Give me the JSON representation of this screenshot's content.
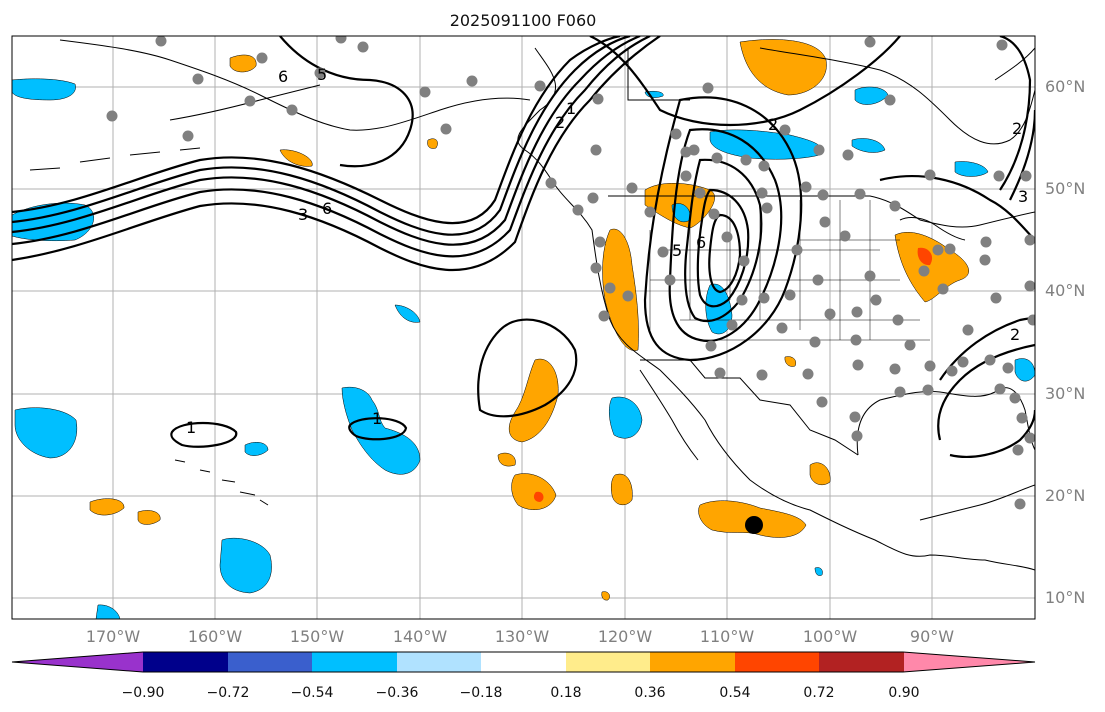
{
  "title": "2025091100 F060",
  "map": {
    "lat_labels": [
      "60°N",
      "50°N",
      "40°N",
      "30°N",
      "20°N",
      "10°N"
    ],
    "lon_labels": [
      "170°W",
      "160°W",
      "150°W",
      "140°W",
      "130°W",
      "120°W",
      "110°W",
      "100°W",
      "90°W"
    ],
    "contour_labels": [
      "6",
      "5",
      "2",
      "1",
      "2",
      "3",
      "6",
      "5",
      "6",
      "2",
      "1",
      "1",
      "3",
      "2"
    ],
    "colors": {
      "positive_orange": "#FFA500",
      "positive_red": "#FF4500",
      "negative_cyan": "#00BFFF",
      "station_dot": "#808080",
      "contour": "#000000"
    }
  },
  "colorbar": {
    "ticks": [
      "−0.90",
      "−0.72",
      "−0.54",
      "−0.36",
      "−0.18",
      "0.18",
      "0.36",
      "0.54",
      "0.72",
      "0.90"
    ],
    "colors": [
      "#9932CC",
      "#00008B",
      "#3A5FCD",
      "#00BFFF",
      "#B0E2FF",
      "#FFFFFF",
      "#FFEC8B",
      "#FFA500",
      "#FF4500",
      "#B22222",
      "#FF88AA"
    ]
  }
}
